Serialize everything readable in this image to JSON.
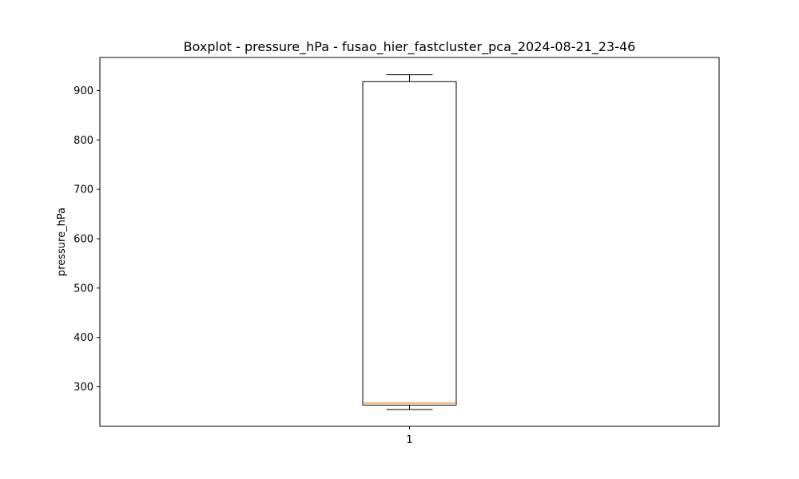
{
  "chart_data": {
    "type": "boxplot",
    "title": "Boxplot - pressure_hPa - fusao_hier_fastcluster_pca_2024-08-21_23-46",
    "xlabel": "",
    "ylabel": "pressure_hPa",
    "ylim": [
      220,
      967
    ],
    "yticks": [
      300,
      400,
      500,
      600,
      700,
      800,
      900
    ],
    "categories": [
      "1"
    ],
    "boxes": [
      {
        "category": "1",
        "whisker_low": 254,
        "q1": 263,
        "median": 267,
        "q3": 918,
        "whisker_high": 932
      }
    ],
    "grid": false,
    "colors": {
      "box": "#000000",
      "median": "#ff7f0e",
      "background": "#ffffff"
    }
  }
}
